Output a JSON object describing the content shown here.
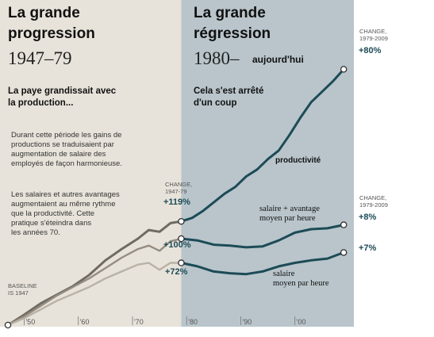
{
  "left_panel": {
    "title_line1": "La grande",
    "title_line2": "progression",
    "years": "1947–79",
    "subtitle_line1": "La paye grandissait avec",
    "subtitle_line2": "la production...",
    "body1": [
      "Durant cette période les gains de",
      "productions se traduisaient par",
      "augmentation de salaire des",
      "employés de façon harmonieuse."
    ],
    "body2": [
      "Les salaires et autres avantages",
      "augmentaient au même rythme",
      "que la productivité. Cette",
      "pratique s'éteindra dans",
      "les années 70."
    ]
  },
  "right_panel": {
    "title_line1": "La grande",
    "title_line2": "régression",
    "years": "1980–",
    "years_note": "aujourd'hui",
    "subtitle_line1": "Cela s'est arrêté",
    "subtitle_line2": "d'un coup"
  },
  "annotations": {
    "change_4779_line1": "CHANGE,",
    "change_4779_line2": "1947-79",
    "change_7909_top_line1": "CHANGE,",
    "change_7909_top_line2": "1979-2009",
    "change_7909_mid_line1": "CHANGE,",
    "change_7909_mid_line2": "1979-2009",
    "baseline_line1": "BASELINE",
    "baseline_line2": "IS 1947",
    "pct_prod_4779": "+119%",
    "pct_comp_4779": "+100%",
    "pct_wage_4779": "+72%",
    "pct_prod_7909": "+80%",
    "pct_comp_7909": "+8%",
    "pct_wage_7909": "+7%",
    "label_prod": "productivité",
    "label_comp_line1": "salaire + avantage",
    "label_comp_line2": "moyen par heure",
    "label_wage_line1": "salaire",
    "label_wage_line2": "moyen par heure"
  },
  "colors": {
    "left_bg": "#e8e3da",
    "right_bg": "#b9c5cb",
    "line_dark": "#1c4b56",
    "line_prod_early": "#6f6b63",
    "line_comp_early": "#958c82",
    "line_wage_early": "#bab1a6"
  },
  "chart_data": {
    "type": "line",
    "x_tick_labels": [
      "'50",
      "'60",
      "'70",
      "'80",
      "'90",
      "'00"
    ],
    "x_ticks": [
      1950,
      1960,
      1970,
      1980,
      1990,
      2000
    ],
    "xlim": [
      1947,
      2010
    ],
    "split_year": 1979,
    "series": [
      {
        "name": "productivité",
        "unit": "index 1947=1",
        "x": [
          1947,
          1950,
          1953,
          1956,
          1959,
          1962,
          1965,
          1968,
          1971,
          1973,
          1975,
          1977,
          1979,
          1981,
          1983,
          1985,
          1987,
          1989,
          1991,
          1993,
          1995,
          1997,
          1999,
          2001,
          2003,
          2005,
          2007,
          2009
        ],
        "values": [
          1.0,
          1.12,
          1.25,
          1.35,
          1.45,
          1.58,
          1.75,
          1.88,
          2.0,
          2.1,
          2.08,
          2.18,
          2.2,
          2.24,
          2.32,
          2.42,
          2.52,
          2.6,
          2.72,
          2.8,
          2.92,
          3.02,
          3.2,
          3.4,
          3.58,
          3.7,
          3.82,
          3.96
        ]
      },
      {
        "name": "salaire + avantage moyen par heure",
        "unit": "index 1947=1",
        "x": [
          1947,
          1950,
          1953,
          1956,
          1959,
          1962,
          1965,
          1968,
          1971,
          1973,
          1975,
          1977,
          1979,
          1982,
          1985,
          1988,
          1991,
          1994,
          1997,
          2000,
          2003,
          2006,
          2009
        ],
        "values": [
          1.0,
          1.1,
          1.22,
          1.34,
          1.44,
          1.54,
          1.66,
          1.78,
          1.88,
          1.92,
          1.86,
          1.97,
          2.0,
          1.98,
          1.93,
          1.92,
          1.9,
          1.91,
          1.98,
          2.07,
          2.11,
          2.12,
          2.16
        ]
      },
      {
        "name": "salaire moyen par heure",
        "unit": "index 1947=1",
        "x": [
          1947,
          1950,
          1953,
          1956,
          1959,
          1962,
          1965,
          1968,
          1971,
          1973,
          1975,
          1977,
          1979,
          1982,
          1985,
          1988,
          1991,
          1994,
          1997,
          2000,
          2003,
          2006,
          2009
        ],
        "values": [
          1.0,
          1.08,
          1.18,
          1.28,
          1.36,
          1.44,
          1.54,
          1.62,
          1.7,
          1.72,
          1.64,
          1.72,
          1.72,
          1.68,
          1.62,
          1.6,
          1.59,
          1.62,
          1.68,
          1.72,
          1.75,
          1.77,
          1.84
        ]
      }
    ]
  }
}
